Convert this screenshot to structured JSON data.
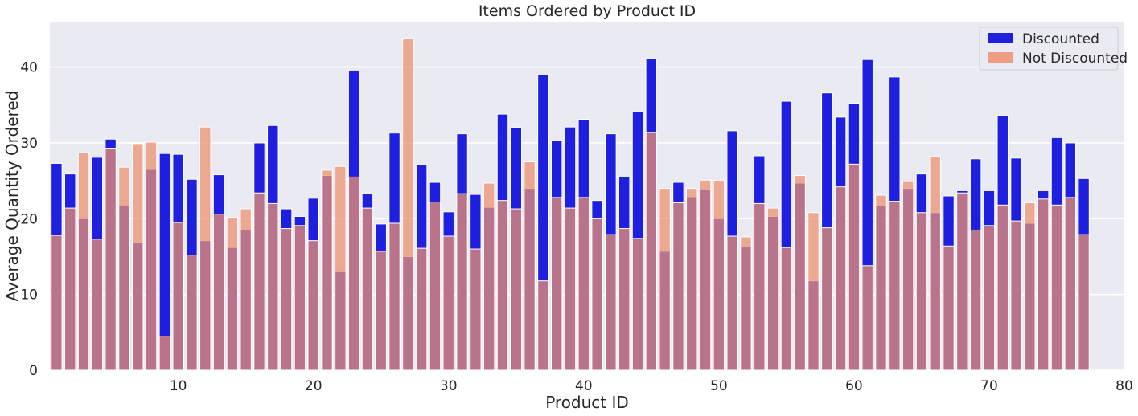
{
  "chart_data": {
    "type": "bar",
    "title": "Items Ordered by Product ID",
    "xlabel": "Product ID",
    "ylabel": "Average Quantity Ordered",
    "xlim": [
      0.5,
      80
    ],
    "ylim": [
      0,
      46
    ],
    "xticks": [
      10,
      20,
      30,
      40,
      50,
      60,
      70,
      80
    ],
    "yticks": [
      0,
      10,
      20,
      30,
      40
    ],
    "grid": true,
    "legend_position": "top-right",
    "x": [
      1,
      2,
      3,
      4,
      5,
      6,
      7,
      8,
      9,
      10,
      11,
      12,
      13,
      14,
      15,
      16,
      17,
      18,
      19,
      20,
      21,
      22,
      23,
      24,
      25,
      26,
      27,
      28,
      29,
      30,
      31,
      32,
      33,
      34,
      35,
      36,
      37,
      38,
      39,
      40,
      41,
      42,
      43,
      44,
      45,
      46,
      47,
      48,
      49,
      50,
      51,
      52,
      53,
      54,
      55,
      56,
      57,
      58,
      59,
      60,
      61,
      62,
      63,
      64,
      65,
      66,
      67,
      68,
      69,
      70,
      71,
      72,
      73,
      74,
      75,
      76,
      77
    ],
    "series": [
      {
        "name": "Discounted",
        "color": "#1f1fe0",
        "values": [
          27.3,
          25.9,
          20.0,
          28.1,
          30.5,
          21.8,
          16.9,
          26.5,
          28.6,
          28.5,
          25.2,
          17.1,
          25.8,
          16.2,
          18.5,
          30.0,
          32.3,
          21.3,
          20.3,
          22.7,
          25.7,
          13.0,
          39.6,
          23.3,
          19.3,
          31.3,
          15.0,
          27.1,
          24.8,
          20.9,
          31.2,
          23.2,
          21.5,
          33.8,
          32.0,
          24.0,
          39.0,
          30.3,
          32.1,
          33.1,
          22.4,
          31.2,
          25.5,
          34.1,
          41.1,
          15.7,
          24.8,
          22.9,
          23.8,
          20.0,
          31.6,
          16.3,
          28.3,
          20.3,
          35.5,
          24.7,
          11.8,
          36.6,
          33.4,
          35.2,
          41.0,
          21.7,
          38.7,
          24.0,
          25.9,
          20.8,
          23.0,
          23.7,
          27.9,
          23.7,
          33.6,
          28.0,
          19.4,
          23.7,
          30.7,
          30.0,
          25.3
        ]
      },
      {
        "name": "Not Discounted",
        "color": "#ee9270",
        "values": [
          17.8,
          21.4,
          28.7,
          17.3,
          29.3,
          26.8,
          29.9,
          30.1,
          4.5,
          19.5,
          15.2,
          32.1,
          20.6,
          20.2,
          21.3,
          23.4,
          22.0,
          18.7,
          19.1,
          17.1,
          26.4,
          26.9,
          25.5,
          21.4,
          15.7,
          19.4,
          43.8,
          16.1,
          22.2,
          17.7,
          23.3,
          16.0,
          24.7,
          22.4,
          21.3,
          27.5,
          11.8,
          22.8,
          21.4,
          22.8,
          20.0,
          17.9,
          18.7,
          17.4,
          31.4,
          24.0,
          22.1,
          24.0,
          25.1,
          25.0,
          17.7,
          17.6,
          22.0,
          21.4,
          16.2,
          25.7,
          20.8,
          18.8,
          24.2,
          27.2,
          13.8,
          23.1,
          22.3,
          24.9,
          20.8,
          28.2,
          16.4,
          23.4,
          18.5,
          19.1,
          21.8,
          19.7,
          22.1,
          22.6,
          21.8,
          22.8,
          17.9
        ]
      }
    ]
  }
}
